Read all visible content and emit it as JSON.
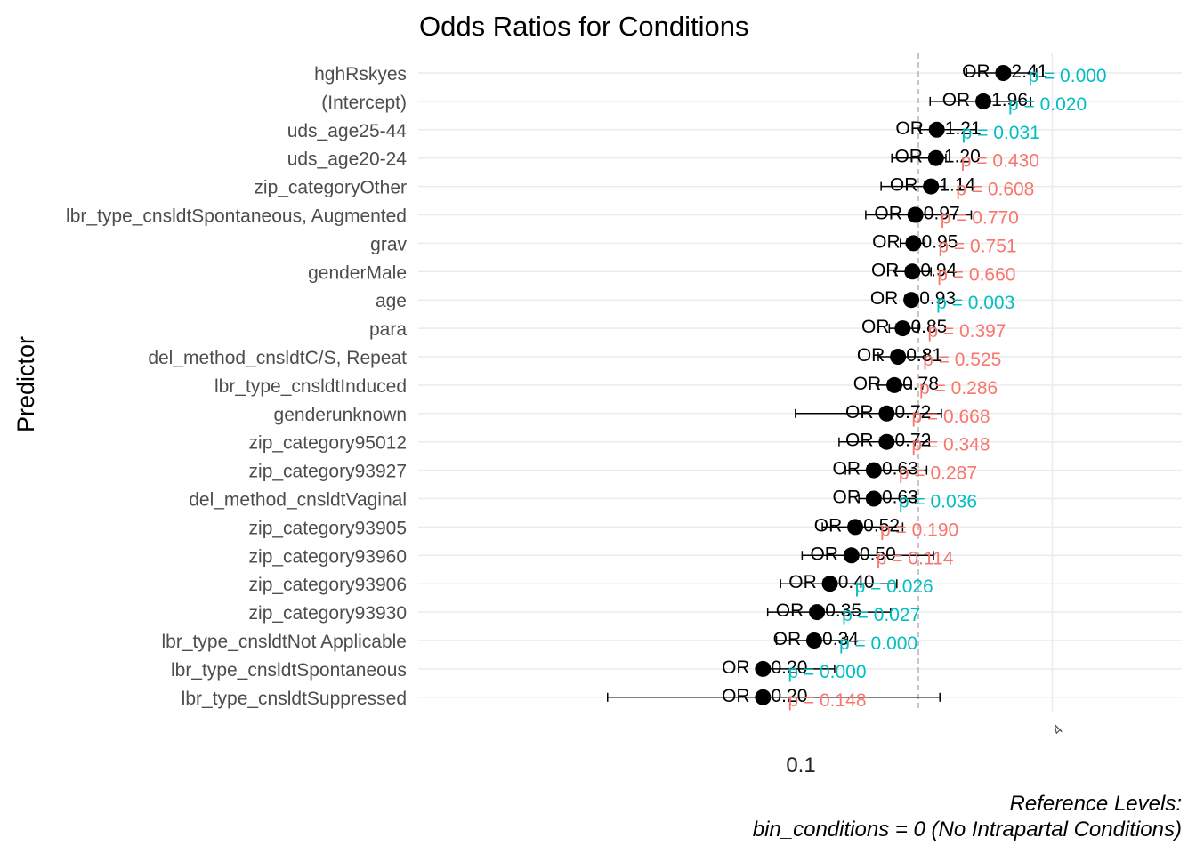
{
  "chart_data": {
    "type": "forest",
    "title": "Odds Ratios for Conditions",
    "ylabel": "Predictor",
    "x_scale": "log",
    "x_tick_labels": [
      "0.1",
      "4"
    ],
    "reference_line": 1,
    "grid": true,
    "significance_colors": {
      "significant": "#00BFC4",
      "not_significant": "#F8766D"
    },
    "caption": [
      "Reference Levels:",
      "bin_conditions = 0 (No Intrapartal Conditions)"
    ],
    "rows": [
      {
        "predictor": "hghRskyes",
        "or": 2.41,
        "or_label": "OR = 2.41",
        "lo": 1.65,
        "hi": 3.4,
        "p_label": "p = 0.000",
        "significant": true
      },
      {
        "predictor": "(Intercept)",
        "or": 1.96,
        "or_label": "OR = 1.96",
        "lo": 1.13,
        "hi": 3.2,
        "p_label": "p = 0.020",
        "significant": true
      },
      {
        "predictor": "uds_age25-44",
        "or": 1.21,
        "or_label": "OR = 1.21",
        "lo": 1.02,
        "hi": 1.82,
        "p_label": "p = 0.031",
        "significant": true
      },
      {
        "predictor": "uds_age20-24",
        "or": 1.2,
        "or_label": "OR = 1.20",
        "lo": 0.76,
        "hi": 1.33,
        "p_label": "p = 0.430",
        "significant": false
      },
      {
        "predictor": "zip_categoryOther",
        "or": 1.14,
        "or_label": "OR = 1.14",
        "lo": 0.68,
        "hi": 1.31,
        "p_label": "p = 0.608",
        "significant": false
      },
      {
        "predictor": "lbr_type_cnsldtSpontaneous, Augmented",
        "or": 0.97,
        "or_label": "OR = 0.97",
        "lo": 0.58,
        "hi": 1.73,
        "p_label": "p = 0.770",
        "significant": false
      },
      {
        "predictor": "grav",
        "or": 0.95,
        "or_label": "OR = 0.95",
        "lo": 0.83,
        "hi": 1.07,
        "p_label": "p = 0.751",
        "significant": false
      },
      {
        "predictor": "genderMale",
        "or": 0.94,
        "or_label": "OR = 0.94",
        "lo": 0.79,
        "hi": 1.14,
        "p_label": "p = 0.660",
        "significant": false
      },
      {
        "predictor": "age",
        "or": 0.93,
        "or_label": "OR = 0.93",
        "lo": 0.89,
        "hi": 0.97,
        "p_label": "p = 0.003",
        "significant": true
      },
      {
        "predictor": "para",
        "or": 0.85,
        "or_label": "OR = 0.85",
        "lo": 0.74,
        "hi": 1.0,
        "p_label": "p = 0.397",
        "significant": false
      },
      {
        "predictor": "del_method_cnsldtC/S, Repeat",
        "or": 0.81,
        "or_label": "OR = 0.81",
        "lo": 0.66,
        "hi": 1.08,
        "p_label": "p = 0.525",
        "significant": false
      },
      {
        "predictor": "lbr_type_cnsldtInduced",
        "or": 0.78,
        "or_label": "OR = 0.78",
        "lo": 0.66,
        "hi": 0.93,
        "p_label": "p = 0.286",
        "significant": false
      },
      {
        "predictor": "genderunknown",
        "or": 0.72,
        "or_label": "OR = 0.72",
        "lo": 0.28,
        "hi": 1.27,
        "p_label": "p = 0.668",
        "significant": false
      },
      {
        "predictor": "zip_category95012",
        "or": 0.72,
        "or_label": "OR = 0.72",
        "lo": 0.44,
        "hi": 1.12,
        "p_label": "p = 0.348",
        "significant": false
      },
      {
        "predictor": "zip_category93927",
        "or": 0.63,
        "or_label": "OR = 0.63",
        "lo": 0.47,
        "hi": 1.09,
        "p_label": "p = 0.287",
        "significant": false
      },
      {
        "predictor": "del_method_cnsldtVaginal",
        "or": 0.63,
        "or_label": "OR = 0.63",
        "lo": 0.54,
        "hi": 0.97,
        "p_label": "p = 0.036",
        "significant": true
      },
      {
        "predictor": "zip_category93905",
        "or": 0.52,
        "or_label": "OR = 0.52",
        "lo": 0.37,
        "hi": 0.85,
        "p_label": "p = 0.190",
        "significant": false
      },
      {
        "predictor": "zip_category93960",
        "or": 0.5,
        "or_label": "OR = 0.50",
        "lo": 0.3,
        "hi": 1.17,
        "p_label": "p = 0.114",
        "significant": false
      },
      {
        "predictor": "zip_category93906",
        "or": 0.4,
        "or_label": "OR = 0.40",
        "lo": 0.24,
        "hi": 0.8,
        "p_label": "p = 0.026",
        "significant": true
      },
      {
        "predictor": "zip_category93930",
        "or": 0.35,
        "or_label": "OR = 0.35",
        "lo": 0.21,
        "hi": 0.75,
        "p_label": "p = 0.027",
        "significant": true
      },
      {
        "predictor": "lbr_type_cnsldtNot Applicable",
        "or": 0.34,
        "or_label": "OR = 0.34",
        "lo": 0.23,
        "hi": 0.48,
        "p_label": "p = 0.000",
        "significant": true
      },
      {
        "predictor": "lbr_type_cnsldtSpontaneous",
        "or": 0.2,
        "or_label": "OR = 0.20",
        "lo": 0.2,
        "hi": 0.42,
        "p_label": "p = 0.000",
        "significant": true
      },
      {
        "predictor": "lbr_type_cnsldtSuppressed",
        "or": 0.2,
        "or_label": "OR = 0.20",
        "lo": 0.04,
        "hi": 1.25,
        "p_label": "p = 0.148",
        "significant": false
      }
    ]
  }
}
